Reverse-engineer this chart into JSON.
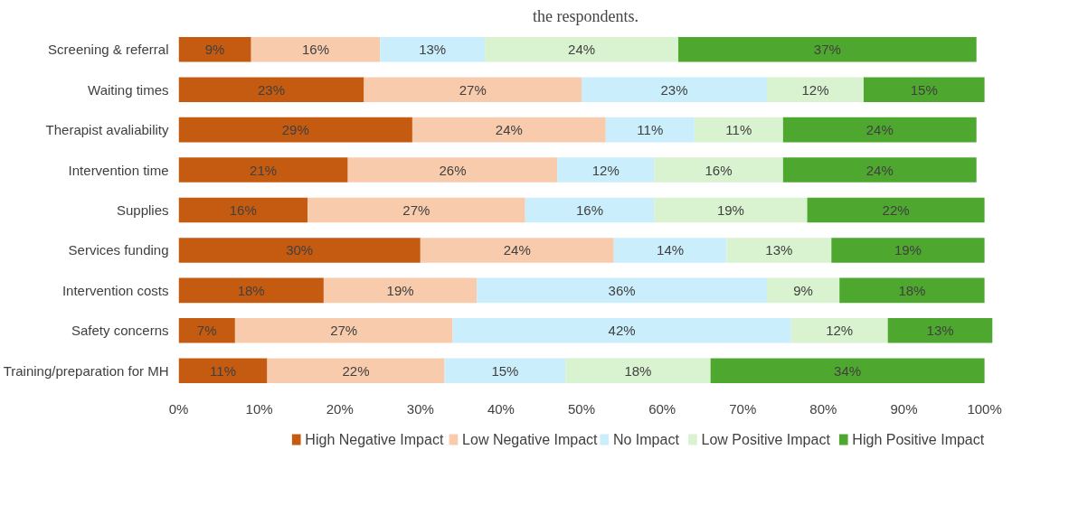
{
  "chart_data": {
    "type": "bar",
    "orientation": "horizontal",
    "stacked": true,
    "title": "the respondents.",
    "categories": [
      "Screening & referral",
      "Waiting times",
      "Therapist avaliability",
      "Intervention time",
      "Supplies",
      "Services funding",
      "Intervention costs",
      "Safety concerns",
      "Training/preparation for MH"
    ],
    "series": [
      {
        "name": "High Negative Impact",
        "color": "#c55a11",
        "values": [
          9,
          23,
          29,
          21,
          16,
          30,
          18,
          7,
          11
        ],
        "value_labels": [
          "9%",
          "23%",
          "29%",
          "21%",
          "16%",
          "30%",
          "18%",
          "7%",
          "11%"
        ]
      },
      {
        "name": "Low Negative Impact",
        "color": "#f8cbad",
        "values": [
          16,
          27,
          24,
          26,
          27,
          24,
          19,
          27,
          22
        ],
        "value_labels": [
          "16%",
          "27%",
          "24%",
          "26%",
          "27%",
          "24%",
          "19%",
          "27%",
          "22%"
        ]
      },
      {
        "name": "No Impact",
        "color": "#caeefb",
        "values": [
          13,
          23,
          11,
          12,
          16,
          14,
          36,
          42,
          15
        ],
        "value_labels": [
          "13%",
          "23%",
          "11%",
          "12%",
          "16%",
          "14%",
          "36%",
          "42%",
          "15%"
        ]
      },
      {
        "name": "Low Positive Impact",
        "color": "#d9f2d0",
        "values": [
          24,
          12,
          11,
          16,
          19,
          13,
          9,
          12,
          18
        ],
        "value_labels": [
          "24%",
          "12%",
          "11%",
          "16%",
          "19%",
          "13%",
          "9%",
          "12%",
          "18%"
        ]
      },
      {
        "name": "High Positive Impact",
        "color": "#4ea72e",
        "values": [
          37,
          15,
          24,
          24,
          22,
          19,
          18,
          13,
          34
        ],
        "value_labels": [
          "37%",
          "15%",
          "24%",
          "24%",
          "22%",
          "19%",
          "18%",
          "13%",
          "34%"
        ]
      }
    ],
    "xlim": [
      0,
      101
    ],
    "xticks": [
      {
        "value": 0,
        "label": "0%"
      },
      {
        "value": 10,
        "label": "10%"
      },
      {
        "value": 20,
        "label": "20%"
      },
      {
        "value": 30,
        "label": "30%"
      },
      {
        "value": 40,
        "label": "40%"
      },
      {
        "value": 50,
        "label": "50%"
      },
      {
        "value": 60,
        "label": "60%"
      },
      {
        "value": 70,
        "label": "70%"
      },
      {
        "value": 80,
        "label": "80%"
      },
      {
        "value": 90,
        "label": "90%"
      },
      {
        "value": 100,
        "label": "100%"
      }
    ],
    "grid": false,
    "legend": "bottom"
  }
}
